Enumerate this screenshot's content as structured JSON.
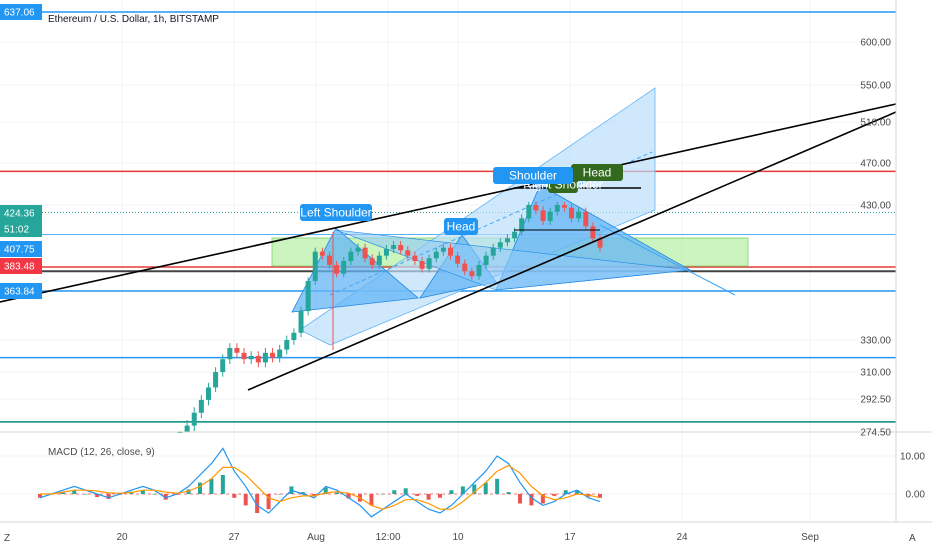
{
  "chart_data": {
    "type": "line",
    "title": "Ethereum / U.S. Dollar, 1h, BITSTAMP",
    "y_axis": {
      "ticks": [
        600.0,
        550.0,
        510.0,
        470.0,
        430.0,
        330.0,
        310.0,
        292.5,
        274.5
      ],
      "tick_labels": [
        "600.00",
        "550.00",
        "510.00",
        "470.00",
        "430.00",
        "330.00",
        "310.00",
        "292.50",
        "274.50"
      ]
    },
    "x_axis": {
      "tick_labels": [
        "20",
        "27",
        "Aug",
        "12:00",
        "10",
        "17",
        "24",
        "Sep"
      ]
    },
    "price_tags": [
      {
        "label": "637.06",
        "value": 637.06,
        "color": "#2196f3"
      },
      {
        "label": "424.36",
        "value": 424.36,
        "color": "#26a69a"
      },
      {
        "label": "51:02",
        "value": 416,
        "color": "#26a69a"
      },
      {
        "label": "407.75",
        "value": 407.75,
        "color": "#2196f3"
      },
      {
        "label": "383.48",
        "value": 383.48,
        "color": "#f23645"
      },
      {
        "label": "363.84",
        "value": 363.84,
        "color": "#2196f3"
      }
    ],
    "horizontal_levels": [
      {
        "value": 637.06,
        "color": "#2196f3"
      },
      {
        "value": 462,
        "color": "#e53935"
      },
      {
        "value": 383.48,
        "color": "#e53935"
      },
      {
        "value": 380,
        "color": "#444444"
      },
      {
        "value": 363.84,
        "color": "#2196f3"
      },
      {
        "value": 319,
        "color": "#2196f3"
      },
      {
        "value": 280,
        "color": "#00897b"
      }
    ],
    "pattern_labels": [
      "Left Shoulder",
      "Head",
      "Right Shoulder",
      "Head",
      "Shoulder"
    ],
    "price_series": {
      "name": "ETHUSD",
      "values": [
        272,
        278,
        285,
        292,
        300,
        310,
        318,
        325,
        322,
        318,
        320,
        316,
        322,
        319,
        324,
        330,
        335,
        350,
        372,
        395,
        392,
        385,
        378,
        388,
        395,
        398,
        390,
        385,
        392,
        397,
        400,
        396,
        392,
        388,
        382,
        390,
        395,
        398,
        392,
        386,
        380,
        376,
        385,
        392,
        398,
        402,
        405,
        410,
        420,
        430,
        426,
        418,
        425,
        430,
        428,
        420,
        425,
        414,
        405,
        398
      ]
    },
    "indicator": {
      "label": "MACD (12, 26, close, 9)",
      "ticks": [
        "10.00",
        "0.00"
      ],
      "macd": [
        -1,
        0,
        1,
        2,
        1,
        0,
        -1,
        0,
        1,
        2,
        1,
        -1,
        0,
        2,
        5,
        8,
        12,
        6,
        2,
        -3,
        -5,
        -2,
        1,
        0,
        -1,
        2,
        1,
        -1,
        -3,
        -6,
        -4,
        -2,
        0,
        -2,
        -4,
        -5,
        -3,
        0,
        3,
        6,
        10,
        8,
        3,
        -1,
        -3,
        -2,
        0,
        1,
        -1,
        -2
      ],
      "signal": [
        0,
        0,
        0.5,
        1,
        1,
        0.8,
        0.3,
        0.2,
        0.4,
        1,
        1,
        0.5,
        0.2,
        0.8,
        2,
        4,
        7,
        7,
        5,
        2,
        -1,
        -2,
        -1,
        -0.5,
        -0.5,
        0.3,
        0.6,
        0.2,
        -1,
        -3,
        -4,
        -3,
        -1.5,
        -1.5,
        -2.5,
        -4,
        -4,
        -2,
        0.5,
        3,
        6,
        7.5,
        5.5,
        2,
        -0.5,
        -1.5,
        -1,
        0,
        -0.3,
        -1
      ]
    },
    "legend": ""
  },
  "ui": {
    "bottom_left_label": "Z",
    "bottom_right_label": "A"
  }
}
